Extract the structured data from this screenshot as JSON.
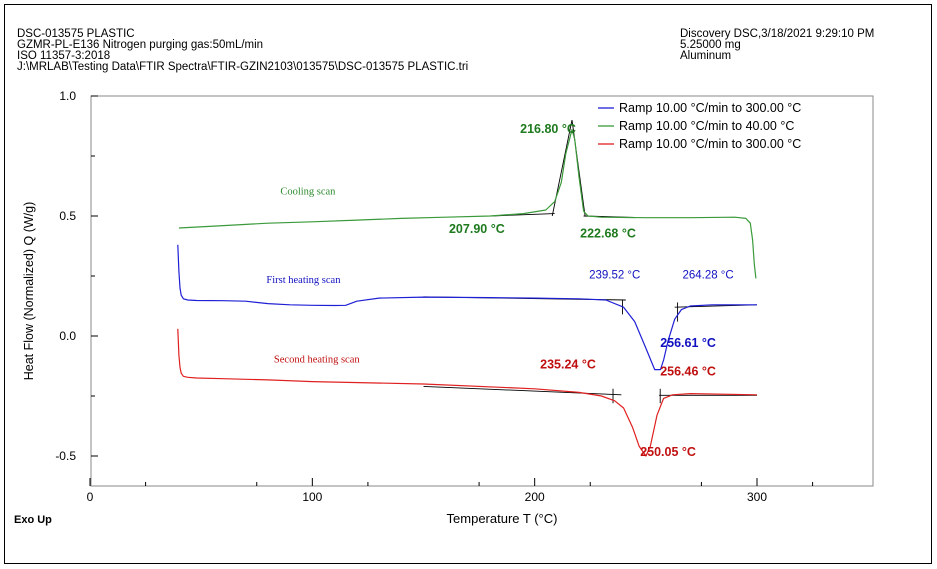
{
  "header_left": [
    "DSC-013575 PLASTIC",
    "GZMR-PL-E136 Nitrogen purging gas:50mL/min",
    "ISO 11357-3:2018",
    "J:\\MRLAB\\Testing Data\\FTIR Spectra\\FTIR-GZIN2103\\013575\\DSC-013575 PLASTIC.tri"
  ],
  "header_right": [
    "Discovery DSC,3/18/2021 9:29:10 PM",
    "5.25000 mg",
    "Aluminum"
  ],
  "exo_label": "Exo Up",
  "chart_data": {
    "type": "line",
    "xlabel": "Temperature  T  (°C)",
    "ylabel": "Heat Flow (Normalized)  Q  (W/g)",
    "xlim": [
      0,
      350
    ],
    "ylim": [
      -0.6,
      1.0
    ],
    "x_ticks": [
      0,
      100,
      200,
      300
    ],
    "y_ticks": [
      1.0,
      0.5,
      0.0,
      -0.5
    ],
    "y_tick_labels": [
      "1.0",
      "0.5",
      "0.0",
      "-0.5"
    ],
    "legend": [
      {
        "label": "Ramp 10.00 °C/min to 300.00 °C",
        "color": "#1f1fd6"
      },
      {
        "label": "Ramp 10.00 °C/min to 40.00 °C",
        "color": "#3a9a3a"
      },
      {
        "label": "Ramp 10.00 °C/min to 300.00 °C",
        "color": "#e02020"
      }
    ],
    "legend_position": "top-right",
    "series": [
      {
        "color": "#3a9a3a",
        "x": [
          40,
          60,
          80,
          100,
          120,
          140,
          160,
          180,
          195,
          205,
          209,
          212,
          214,
          216.8,
          218,
          220,
          222,
          224,
          230,
          250,
          270,
          290,
          295,
          297,
          298,
          298.8,
          299.5
        ],
        "y": [
          0.45,
          0.46,
          0.47,
          0.476,
          0.483,
          0.49,
          0.495,
          0.5,
          0.51,
          0.525,
          0.56,
          0.64,
          0.76,
          0.86,
          0.82,
          0.66,
          0.52,
          0.5,
          0.495,
          0.493,
          0.493,
          0.495,
          0.49,
          0.47,
          0.4,
          0.3,
          0.24
        ]
      },
      {
        "color": "#1f1fd6",
        "x": [
          39.5,
          39.7,
          40,
          40.5,
          41,
          42,
          44,
          48,
          60,
          70,
          80,
          90,
          100,
          110,
          115,
          120,
          130,
          150,
          180,
          200,
          220,
          232,
          240,
          245,
          250,
          254,
          256.6,
          258,
          260,
          263,
          266,
          270,
          280,
          300
        ],
        "y": [
          0.38,
          0.33,
          0.27,
          0.2,
          0.17,
          0.155,
          0.15,
          0.148,
          0.147,
          0.145,
          0.135,
          0.13,
          0.128,
          0.127,
          0.128,
          0.145,
          0.158,
          0.162,
          0.16,
          0.158,
          0.155,
          0.15,
          0.12,
          0.06,
          -0.05,
          -0.14,
          -0.14,
          -0.1,
          -0.02,
          0.07,
          0.11,
          0.125,
          0.13,
          0.13
        ]
      },
      {
        "color": "#e02020",
        "x": [
          39.5,
          39.7,
          40,
          40.5,
          41,
          42,
          44,
          48,
          60,
          80,
          100,
          150,
          200,
          220,
          230,
          236,
          240,
          244,
          247,
          250.05,
          252,
          255,
          258,
          262,
          270,
          300
        ],
        "y": [
          0.03,
          -0.02,
          -0.08,
          -0.13,
          -0.155,
          -0.168,
          -0.172,
          -0.175,
          -0.178,
          -0.183,
          -0.19,
          -0.2,
          -0.22,
          -0.235,
          -0.25,
          -0.27,
          -0.3,
          -0.38,
          -0.46,
          -0.5,
          -0.46,
          -0.33,
          -0.26,
          -0.245,
          -0.24,
          -0.245
        ]
      }
    ],
    "baselines": [
      {
        "color": "#000000",
        "x": [
          180,
          209
        ],
        "y": [
          0.5,
          0.51
        ]
      },
      {
        "color": "#000000",
        "x": [
          222,
          245
        ],
        "y": [
          0.5,
          0.494
        ]
      },
      {
        "color": "#000000",
        "x": [
          150,
          241
        ],
        "y": [
          0.163,
          0.15
        ]
      },
      {
        "color": "#000000",
        "x": [
          263,
          300
        ],
        "y": [
          0.12,
          0.13
        ]
      },
      {
        "color": "#000000",
        "x": [
          150,
          239
        ],
        "y": [
          -0.21,
          -0.245
        ]
      },
      {
        "color": "#000000",
        "x": [
          256,
          300
        ],
        "y": [
          -0.247,
          -0.247
        ]
      }
    ],
    "tangents": [
      {
        "color": "#000000",
        "x": [
          207.9,
          216.8
        ],
        "y": [
          0.5,
          0.9
        ]
      },
      {
        "color": "#000000",
        "x": [
          216.8,
          222.68
        ],
        "y": [
          0.9,
          0.5
        ]
      },
      {
        "color": "#000000",
        "x": [
          239.52,
          239.52
        ],
        "y": [
          0.15,
          0.09
        ]
      },
      {
        "color": "#000000",
        "x": [
          264.28,
          264.28
        ],
        "y": [
          0.14,
          0.06
        ]
      },
      {
        "color": "#000000",
        "x": [
          235.24,
          235.24
        ],
        "y": [
          -0.22,
          -0.28
        ]
      },
      {
        "color": "#000000",
        "x": [
          256.46,
          256.46
        ],
        "y": [
          -0.22,
          -0.28
        ]
      }
    ],
    "annotations": [
      {
        "text": "216.80 °C",
        "x": 206,
        "y": 0.845,
        "color": "#1e7a1e",
        "size": 12.5,
        "bold": true
      },
      {
        "text": "Cooling scan",
        "x": 98,
        "y": 0.59,
        "color": "#2e8b2e",
        "size": 10.5,
        "bold": false,
        "serif": true
      },
      {
        "text": "207.90 °C",
        "x": 174,
        "y": 0.43,
        "color": "#1e7a1e",
        "size": 12.5,
        "bold": true
      },
      {
        "text": "222.68 °C",
        "x": 233,
        "y": 0.41,
        "color": "#1e7a1e",
        "size": 12.5,
        "bold": true
      },
      {
        "text": "First heating scan",
        "x": 96,
        "y": 0.22,
        "color": "#1010c0",
        "size": 10.5,
        "bold": false,
        "serif": true
      },
      {
        "text": "239.52 °C",
        "x": 236,
        "y": 0.24,
        "color": "#1010c0",
        "size": 11.5,
        "bold": false
      },
      {
        "text": "264.28 °C",
        "x": 278,
        "y": 0.24,
        "color": "#1010c0",
        "size": 11.5,
        "bold": false
      },
      {
        "text": "256.61 °C",
        "x": 269,
        "y": -0.045,
        "color": "#1010c0",
        "size": 12.5,
        "bold": true
      },
      {
        "text": "Second heating scan",
        "x": 102,
        "y": -0.11,
        "color": "#c01010",
        "size": 10.5,
        "bold": false,
        "serif": true
      },
      {
        "text": "235.24 °C",
        "x": 215,
        "y": -0.135,
        "color": "#c01010",
        "size": 12.5,
        "bold": true
      },
      {
        "text": "256.46 °C",
        "x": 269,
        "y": -0.165,
        "color": "#c01010",
        "size": 12.5,
        "bold": true
      },
      {
        "text": "250.05 °C",
        "x": 260,
        "y": -0.5,
        "color": "#c01010",
        "size": 12.5,
        "bold": true
      }
    ]
  }
}
